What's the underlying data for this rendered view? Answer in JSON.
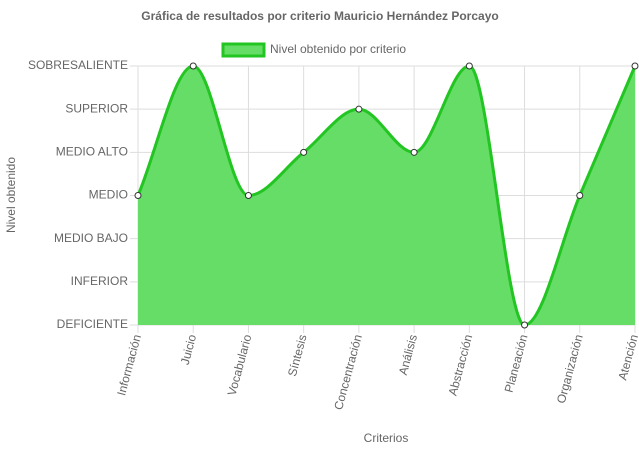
{
  "chart_data": {
    "type": "line",
    "title": "Gráfica de resultados por criterio Mauricio Hernández Porcayo",
    "x_label": "Criterios",
    "y_label": "Nivel obtenido",
    "categories": [
      "Información",
      "Juicio",
      "Vocabulario",
      "Síntesis",
      "Concentración",
      "Análisis",
      "Abstracción",
      "Planeación",
      "Organización",
      "Atención"
    ],
    "series": [
      {
        "name": "Nivel obtenido por criterio",
        "color": "#22c522",
        "fill": "#66dd66",
        "values": [
          3,
          6,
          3,
          4,
          5,
          4,
          6,
          0,
          3,
          6
        ]
      }
    ],
    "ylim": [
      0,
      6
    ],
    "yticks": [
      {
        "value": 0,
        "label": "DEFICIENTE"
      },
      {
        "value": 1,
        "label": "INFERIOR"
      },
      {
        "value": 2,
        "label": "MEDIO BAJO"
      },
      {
        "value": 3,
        "label": "MEDIO"
      },
      {
        "value": 4,
        "label": "MEDIO ALTO"
      },
      {
        "value": 5,
        "label": "SUPERIOR"
      },
      {
        "value": 6,
        "label": "SOBRESALIENTE"
      }
    ],
    "grid": true,
    "legend": "top"
  }
}
